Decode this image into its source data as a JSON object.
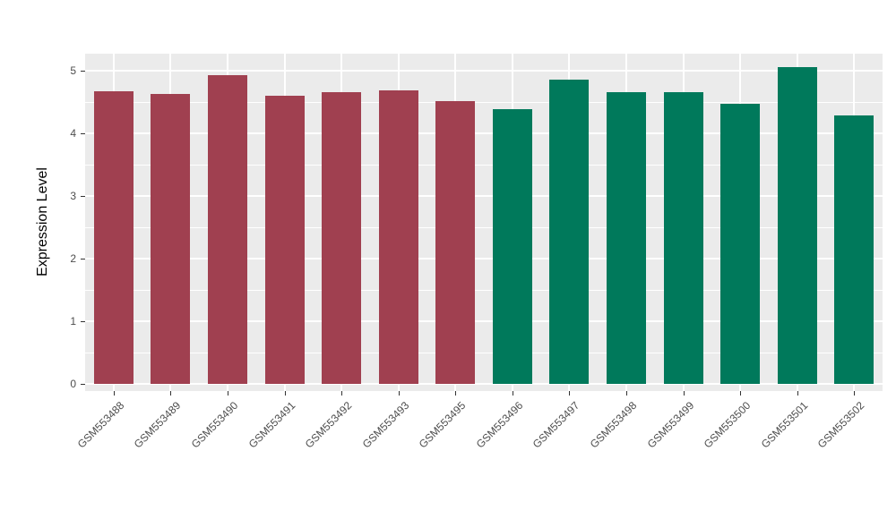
{
  "chart_data": {
    "type": "bar",
    "title": "",
    "xlabel": "",
    "ylabel": "Expression Level",
    "categories": [
      "GSM553488",
      "GSM553489",
      "GSM553490",
      "GSM553491",
      "GSM553492",
      "GSM553493",
      "GSM553495",
      "GSM553496",
      "GSM553497",
      "GSM553498",
      "GSM553499",
      "GSM553500",
      "GSM553501",
      "GSM553502"
    ],
    "values": [
      4.67,
      4.63,
      4.93,
      4.6,
      4.65,
      4.68,
      4.51,
      4.38,
      4.86,
      4.65,
      4.65,
      4.47,
      5.05,
      4.29
    ],
    "colors": [
      "#A04050",
      "#A04050",
      "#A04050",
      "#A04050",
      "#A04050",
      "#A04050",
      "#A04050",
      "#00795B",
      "#00795B",
      "#00795B",
      "#00795B",
      "#00795B",
      "#00795B",
      "#00795B"
    ],
    "group_colors": {
      "left_group": "#A04050",
      "right_group": "#00795B"
    },
    "ylim": [
      0,
      5.3
    ],
    "yticks": [
      0,
      1,
      2,
      3,
      4,
      5
    ],
    "grid": "on",
    "legend": "none",
    "panel_background": "#EBEBEB",
    "gridline_color": "#FFFFFF",
    "tick_text_color": "#4D4D4D"
  }
}
